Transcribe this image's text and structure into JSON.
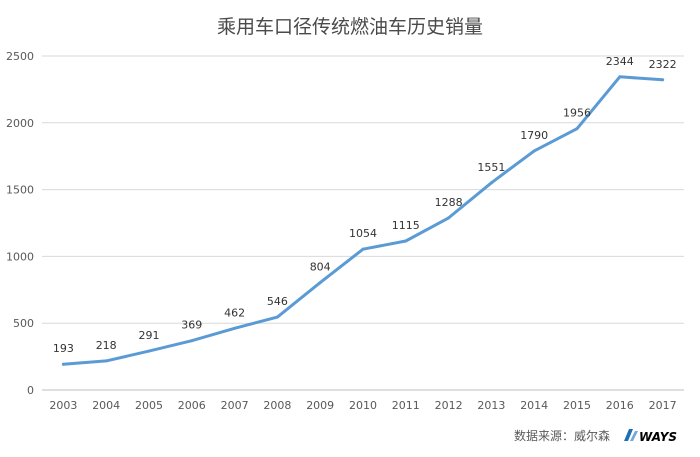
{
  "chart_data": {
    "type": "line",
    "title": "乘用车口径传统燃油车历史销量",
    "xlabel": "",
    "ylabel": "",
    "categories": [
      "2003",
      "2004",
      "2005",
      "2006",
      "2007",
      "2008",
      "2009",
      "2010",
      "2011",
      "2012",
      "2013",
      "2014",
      "2015",
      "2016",
      "2017"
    ],
    "series": [
      {
        "values": [
          193,
          218,
          291,
          369,
          462,
          546,
          804,
          1054,
          1115,
          1288,
          1551,
          1790,
          1956,
          2344,
          2322
        ]
      }
    ],
    "y_ticks": [
      "0",
      "500",
      "1000",
      "1500",
      "2000",
      "2500"
    ],
    "ylim": [
      0,
      2500
    ],
    "grid": true,
    "data_labels": true,
    "legend": "none",
    "line_color": "#5b9bd5"
  },
  "footer": {
    "source_text": "数据来源：威尔森",
    "logo_text": "WAYS",
    "logo_color": "#1f6fb5"
  }
}
